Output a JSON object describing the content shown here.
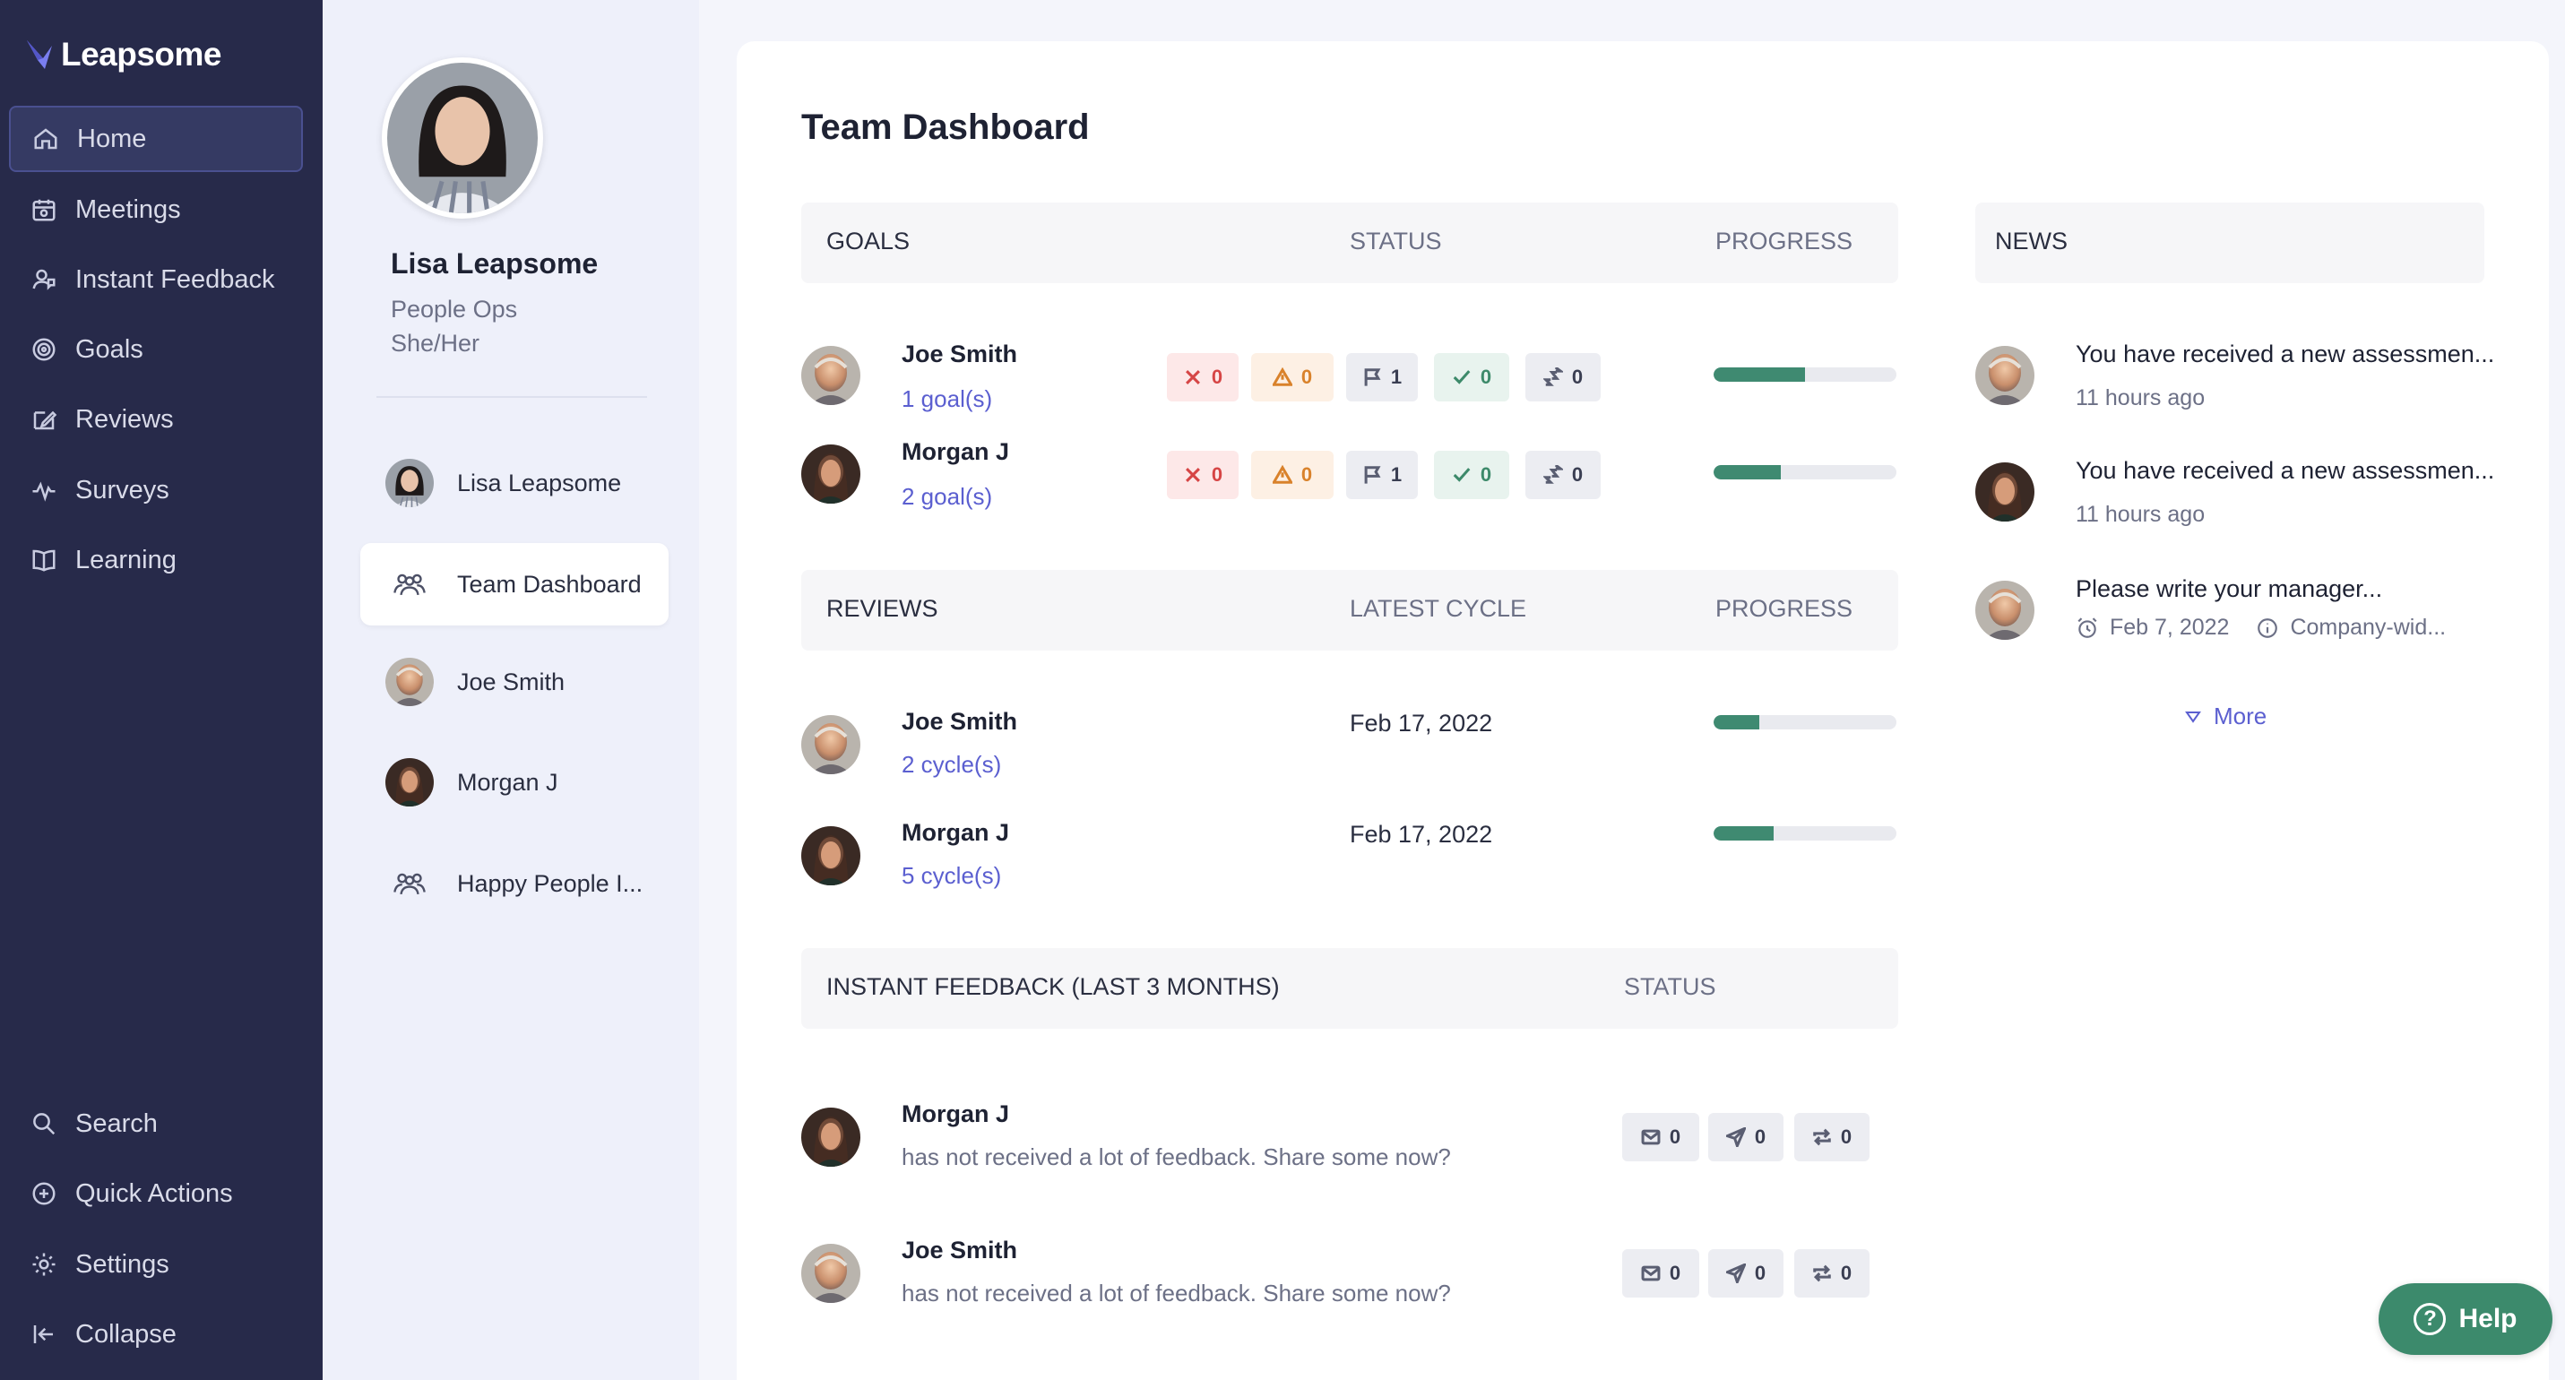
{
  "brand": {
    "name": "Leapsome",
    "accent": "#6b6fe0"
  },
  "nav": {
    "items": [
      {
        "label": "Home",
        "icon": "home-icon"
      },
      {
        "label": "Meetings",
        "icon": "meetings-icon"
      },
      {
        "label": "Instant Feedback",
        "icon": "feedback-icon"
      },
      {
        "label": "Goals",
        "icon": "goals-icon"
      },
      {
        "label": "Reviews",
        "icon": "reviews-icon"
      },
      {
        "label": "Surveys",
        "icon": "surveys-icon"
      },
      {
        "label": "Learning",
        "icon": "learning-icon"
      }
    ],
    "bottom": [
      {
        "label": "Search",
        "icon": "search-icon"
      },
      {
        "label": "Quick Actions",
        "icon": "plus-circle-icon"
      },
      {
        "label": "Settings",
        "icon": "gear-icon"
      },
      {
        "label": "Collapse",
        "icon": "collapse-icon"
      }
    ]
  },
  "profile": {
    "name": "Lisa Leapsome",
    "role": "People Ops",
    "pronouns": "She/Her"
  },
  "subnav": {
    "items": [
      {
        "label": "Lisa Leapsome"
      },
      {
        "label": "Team Dashboard"
      },
      {
        "label": "Joe Smith"
      },
      {
        "label": "Morgan J"
      },
      {
        "label": "Happy People I..."
      }
    ]
  },
  "dashboard": {
    "title": "Team Dashboard",
    "goals": {
      "headers": {
        "goals": "GOALS",
        "status": "STATUS",
        "progress": "PROGRESS"
      },
      "rows": [
        {
          "name": "Joe Smith",
          "link": "1 goal(s)",
          "counts": [
            "0",
            "0",
            "1",
            "0",
            "0"
          ],
          "progress": 0.5
        },
        {
          "name": "Morgan J",
          "link": "2 goal(s)",
          "counts": [
            "0",
            "0",
            "1",
            "0",
            "0"
          ],
          "progress": 0.37
        }
      ]
    },
    "reviews": {
      "headers": {
        "reviews": "REVIEWS",
        "cycle": "LATEST CYCLE",
        "progress": "PROGRESS"
      },
      "rows": [
        {
          "name": "Joe Smith",
          "link": "2 cycle(s)",
          "date": "Feb 17, 2022",
          "progress": 0.25
        },
        {
          "name": "Morgan J",
          "link": "5 cycle(s)",
          "date": "Feb 17, 2022",
          "progress": 0.33
        }
      ]
    },
    "feedback": {
      "headers": {
        "title": "INSTANT FEEDBACK (LAST 3 MONTHS)",
        "status": "STATUS"
      },
      "rows": [
        {
          "name": "Morgan J",
          "text": "has not received a lot of feedback. Share some now?",
          "counts": [
            "0",
            "0",
            "0"
          ]
        },
        {
          "name": "Joe Smith",
          "text": "has not received a lot of feedback. Share some now?",
          "counts": [
            "0",
            "0",
            "0"
          ]
        }
      ]
    }
  },
  "news": {
    "header": "NEWS",
    "items": [
      {
        "title": "You have received a new assessmen...",
        "time": "11 hours ago"
      },
      {
        "title": "You have received a new assessmen...",
        "time": "11 hours ago"
      },
      {
        "title": "Please write your manager...",
        "date": "Feb 7, 2022",
        "scope": "Company-wid..."
      }
    ],
    "more": "More"
  },
  "help": {
    "label": "Help"
  },
  "colors": {
    "nav_bg": "#272a4a",
    "progress": "#3f8a71",
    "link": "#5b5fd0",
    "help": "#3c8a6c"
  }
}
